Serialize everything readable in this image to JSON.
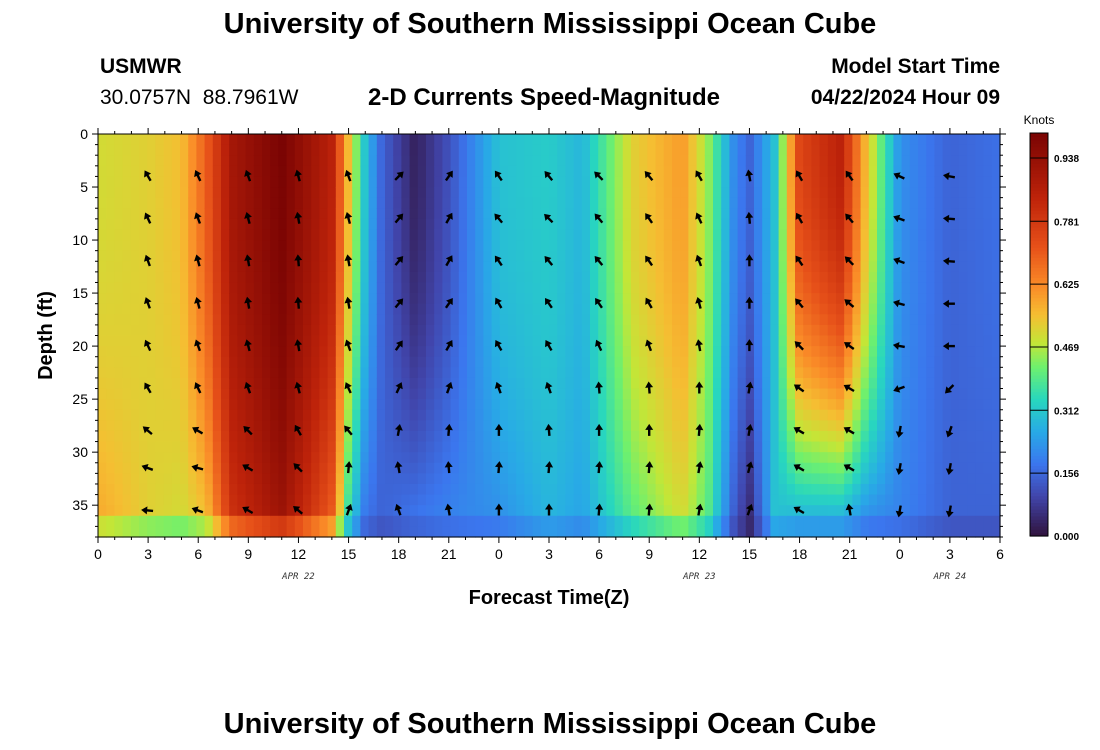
{
  "header": {
    "title": "University of Southern Mississippi Ocean Cube",
    "station": "USMWR",
    "coords": "30.0757N  88.7961W",
    "subtitle": "2-D Currents Speed-Magnitude",
    "model_label": "Model Start Time",
    "model_time": "04/22/2024 Hour 09",
    "footer_title": "University of Southern Mississippi Ocean Cube"
  },
  "chart_data": {
    "type": "heatmap",
    "title": "2-D Currents Speed-Magnitude",
    "xlabel": "Forecast Time(Z)",
    "ylabel": "Depth (ft)",
    "x_range_hours": [
      0,
      54
    ],
    "ylim": [
      0,
      38
    ],
    "x_ticks": [
      {
        "h": 0,
        "label": "0"
      },
      {
        "h": 3,
        "label": "3"
      },
      {
        "h": 6,
        "label": "6"
      },
      {
        "h": 9,
        "label": "9"
      },
      {
        "h": 12,
        "label": "12"
      },
      {
        "h": 15,
        "label": "15"
      },
      {
        "h": 18,
        "label": "18"
      },
      {
        "h": 21,
        "label": "21"
      },
      {
        "h": 24,
        "label": "0"
      },
      {
        "h": 27,
        "label": "3"
      },
      {
        "h": 30,
        "label": "6"
      },
      {
        "h": 33,
        "label": "9"
      },
      {
        "h": 36,
        "label": "12"
      },
      {
        "h": 39,
        "label": "15"
      },
      {
        "h": 42,
        "label": "18"
      },
      {
        "h": 45,
        "label": "21"
      },
      {
        "h": 48,
        "label": "0"
      },
      {
        "h": 51,
        "label": "3"
      },
      {
        "h": 54,
        "label": "6"
      }
    ],
    "y_ticks": [
      0,
      5,
      10,
      15,
      20,
      25,
      30,
      35
    ],
    "date_labels": [
      {
        "h": 12,
        "label": "APR 22"
      },
      {
        "h": 36,
        "label": "APR 23"
      },
      {
        "h": 51,
        "label": "APR 24"
      }
    ],
    "colorbar": {
      "title": "Knots",
      "min": 0.0,
      "max": 1.0,
      "ticks": [
        "0.000",
        "0.156",
        "0.312",
        "0.469",
        "0.625",
        "0.781",
        "0.938"
      ],
      "tick_values": [
        0.0,
        0.156,
        0.312,
        0.469,
        0.625,
        0.781,
        0.938
      ]
    },
    "speed_profile": [
      {
        "h": 0,
        "surface": 0.5,
        "bottom": 0.58
      },
      {
        "h": 3,
        "surface": 0.52,
        "bottom": 0.52
      },
      {
        "h": 5,
        "surface": 0.55,
        "bottom": 0.5
      },
      {
        "h": 6.5,
        "surface": 0.7,
        "bottom": 0.55
      },
      {
        "h": 8,
        "surface": 0.9,
        "bottom": 0.8
      },
      {
        "h": 11,
        "surface": 1.0,
        "bottom": 0.92
      },
      {
        "h": 14,
        "surface": 0.85,
        "bottom": 0.7
      },
      {
        "h": 15,
        "surface": 0.55,
        "bottom": 0.35
      },
      {
        "h": 16,
        "surface": 0.3,
        "bottom": 0.18
      },
      {
        "h": 17,
        "surface": 0.15,
        "bottom": 0.15
      },
      {
        "h": 19,
        "surface": 0.03,
        "bottom": 0.18
      },
      {
        "h": 21,
        "surface": 0.12,
        "bottom": 0.2
      },
      {
        "h": 24,
        "surface": 0.3,
        "bottom": 0.22
      },
      {
        "h": 27,
        "surface": 0.32,
        "bottom": 0.28
      },
      {
        "h": 29,
        "surface": 0.28,
        "bottom": 0.25
      },
      {
        "h": 32,
        "surface": 0.52,
        "bottom": 0.4
      },
      {
        "h": 35,
        "surface": 0.6,
        "bottom": 0.5
      },
      {
        "h": 36.5,
        "surface": 0.45,
        "bottom": 0.4
      },
      {
        "h": 38,
        "surface": 0.22,
        "bottom": 0.15
      },
      {
        "h": 39,
        "surface": 0.15,
        "bottom": 0.05
      },
      {
        "h": 40.5,
        "surface": 0.3,
        "bottom": 0.3
      },
      {
        "h": 42,
        "surface": 0.75,
        "bottom": 0.28
      },
      {
        "h": 44.5,
        "surface": 0.85,
        "bottom": 0.28
      },
      {
        "h": 46,
        "surface": 0.55,
        "bottom": 0.22
      },
      {
        "h": 48,
        "surface": 0.22,
        "bottom": 0.2
      },
      {
        "h": 51,
        "surface": 0.15,
        "bottom": 0.15
      },
      {
        "h": 54,
        "surface": 0.17,
        "bottom": 0.15
      }
    ],
    "arrow_times": [
      3,
      6,
      9,
      12,
      15,
      18,
      21,
      24,
      27,
      30,
      33,
      36,
      39,
      42,
      45,
      48,
      51
    ],
    "arrow_depths": [
      4,
      8,
      12,
      16,
      20,
      24,
      28,
      31.5,
      35.5
    ],
    "arrow_directions_deg": [
      [
        120,
        115,
        110,
        105,
        110,
        45,
        55,
        125,
        130,
        135,
        130,
        120,
        100,
        120,
        125,
        155,
        170
      ],
      [
        115,
        110,
        105,
        100,
        105,
        50,
        60,
        130,
        135,
        130,
        125,
        115,
        95,
        120,
        130,
        160,
        175
      ],
      [
        110,
        105,
        100,
        95,
        100,
        50,
        60,
        125,
        130,
        130,
        125,
        110,
        90,
        125,
        135,
        160,
        175
      ],
      [
        110,
        105,
        100,
        95,
        100,
        50,
        55,
        120,
        125,
        125,
        120,
        105,
        90,
        130,
        140,
        165,
        180
      ],
      [
        115,
        110,
        105,
        100,
        110,
        55,
        60,
        120,
        120,
        115,
        110,
        100,
        90,
        135,
        145,
        170,
        180
      ],
      [
        120,
        115,
        110,
        105,
        115,
        65,
        70,
        110,
        110,
        95,
        95,
        90,
        80,
        145,
        150,
        200,
        225
      ],
      [
        140,
        150,
        135,
        120,
        130,
        80,
        85,
        90,
        95,
        90,
        90,
        85,
        80,
        150,
        150,
        260,
        250
      ],
      [
        160,
        165,
        150,
        135,
        85,
        100,
        95,
        85,
        85,
        85,
        85,
        80,
        75,
        150,
        150,
        260,
        260
      ],
      [
        175,
        160,
        150,
        140,
        70,
        110,
        100,
        90,
        90,
        85,
        85,
        80,
        70,
        150,
        100,
        260,
        260
      ]
    ]
  }
}
